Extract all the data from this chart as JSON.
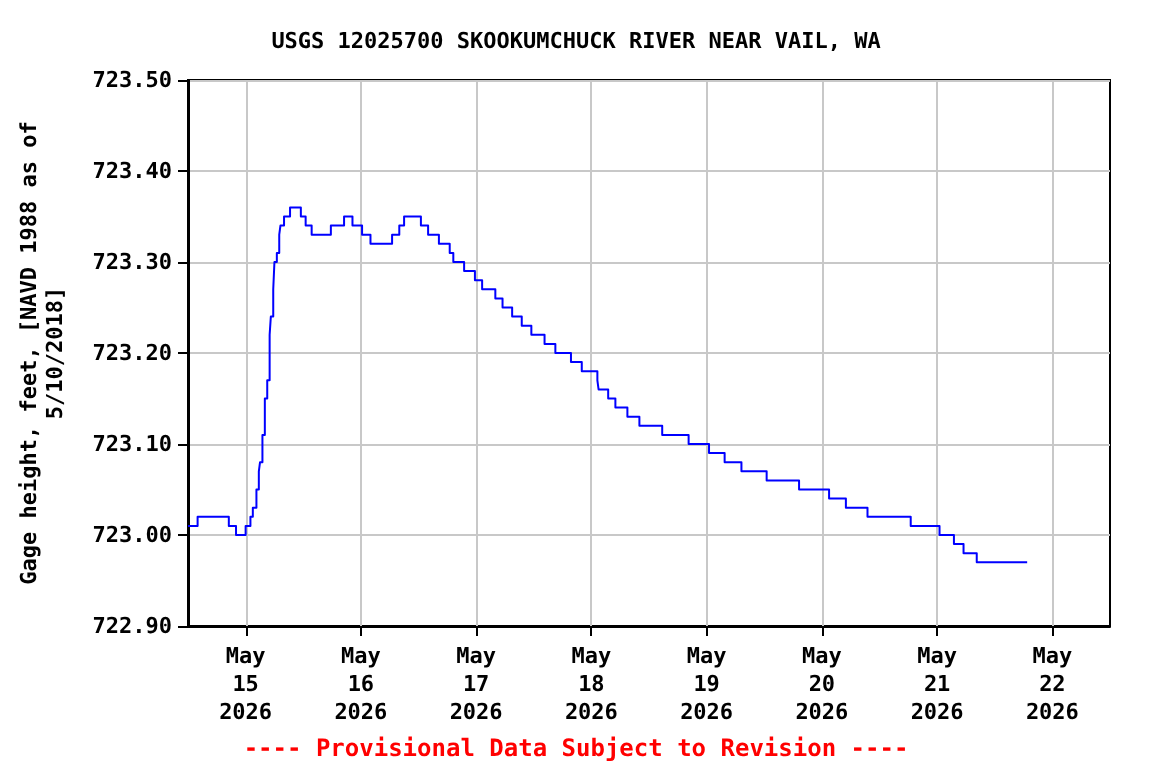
{
  "chart_data": {
    "type": "step",
    "title": "USGS 12025700 SKOOKUMCHUCK RIVER NEAR VAIL, WA",
    "ylabel": "Gage height, feet, [NAVD 1988 as of\n5/10/2018]",
    "annotations": [
      "---- Provisional Data Subject to Revision ----"
    ],
    "x": [
      "2026-05-14T12:00",
      "2026-05-14T14:00",
      "2026-05-14T20:30",
      "2026-05-14T22:00",
      "2026-05-15T00:00",
      "2026-05-15T01:00",
      "2026-05-15T01:30",
      "2026-05-15T02:15",
      "2026-05-15T02:45",
      "2026-05-15T03:00",
      "2026-05-15T03:30",
      "2026-05-15T04:00",
      "2026-05-15T04:30",
      "2026-05-15T05:00",
      "2026-05-15T05:15",
      "2026-05-15T05:45",
      "2026-05-15T06:00",
      "2026-05-15T06:30",
      "2026-05-15T07:00",
      "2026-05-15T07:15",
      "2026-05-15T08:00",
      "2026-05-15T09:15",
      "2026-05-15T11:30",
      "2026-05-15T12:30",
      "2026-05-15T13:45",
      "2026-05-15T17:45",
      "2026-05-15T20:30",
      "2026-05-15T22:15",
      "2026-05-16T00:15",
      "2026-05-16T02:00",
      "2026-05-16T06:30",
      "2026-05-16T08:00",
      "2026-05-16T09:00",
      "2026-05-16T12:30",
      "2026-05-16T14:00",
      "2026-05-16T16:15",
      "2026-05-16T18:30",
      "2026-05-16T19:15",
      "2026-05-16T21:30",
      "2026-05-16T23:45",
      "2026-05-17T01:15",
      "2026-05-17T04:00",
      "2026-05-17T05:30",
      "2026-05-17T07:30",
      "2026-05-17T09:30",
      "2026-05-17T11:30",
      "2026-05-17T14:15",
      "2026-05-17T16:30",
      "2026-05-17T19:45",
      "2026-05-17T22:00",
      "2026-05-18T01:15",
      "2026-05-18T01:30",
      "2026-05-18T03:30",
      "2026-05-18T05:00",
      "2026-05-18T07:30",
      "2026-05-18T10:00",
      "2026-05-18T14:45",
      "2026-05-18T20:15",
      "2026-05-19T00:30",
      "2026-05-19T03:45",
      "2026-05-19T07:15",
      "2026-05-19T12:30",
      "2026-05-19T19:15",
      "2026-05-20T01:30",
      "2026-05-20T05:00",
      "2026-05-20T09:30",
      "2026-05-20T18:30",
      "2026-05-21T00:30",
      "2026-05-21T03:30",
      "2026-05-21T05:30",
      "2026-05-21T08:15",
      "2026-05-21T18:45"
    ],
    "series": [
      {
        "color": "#0000ff",
        "values": [
          723.01,
          723.02,
          723.01,
          723.0,
          723.01,
          723.02,
          723.03,
          723.05,
          723.07,
          723.08,
          723.11,
          723.15,
          723.17,
          723.22,
          723.24,
          723.27,
          723.3,
          723.31,
          723.33,
          723.34,
          723.35,
          723.36,
          723.35,
          723.34,
          723.33,
          723.34,
          723.35,
          723.34,
          723.33,
          723.32,
          723.33,
          723.34,
          723.35,
          723.34,
          723.33,
          723.32,
          723.31,
          723.3,
          723.29,
          723.28,
          723.27,
          723.26,
          723.25,
          723.24,
          723.23,
          723.22,
          723.21,
          723.2,
          723.19,
          723.18,
          723.17,
          723.16,
          723.15,
          723.14,
          723.13,
          723.12,
          723.11,
          723.1,
          723.09,
          723.08,
          723.07,
          723.06,
          723.05,
          723.04,
          723.03,
          723.02,
          723.01,
          723.0,
          722.99,
          722.98,
          722.97,
          722.97
        ]
      }
    ],
    "xlim": [
      "2026-05-14T12:00",
      "2026-05-22T12:00"
    ],
    "xticks": [
      {
        "value": "2026-05-15",
        "label": "May\n15\n2026"
      },
      {
        "value": "2026-05-16",
        "label": "May\n16\n2026"
      },
      {
        "value": "2026-05-17",
        "label": "May\n17\n2026"
      },
      {
        "value": "2026-05-18",
        "label": "May\n18\n2026"
      },
      {
        "value": "2026-05-19",
        "label": "May\n19\n2026"
      },
      {
        "value": "2026-05-20",
        "label": "May\n20\n2026"
      },
      {
        "value": "2026-05-21",
        "label": "May\n21\n2026"
      },
      {
        "value": "2026-05-22",
        "label": "May\n22\n2026"
      }
    ],
    "ylim": [
      722.9,
      723.5
    ],
    "yticks": [
      {
        "value": 722.9,
        "label": "722.90"
      },
      {
        "value": 723.0,
        "label": "723.00"
      },
      {
        "value": 723.1,
        "label": "723.10"
      },
      {
        "value": 723.2,
        "label": "723.20"
      },
      {
        "value": 723.3,
        "label": "723.30"
      },
      {
        "value": 723.4,
        "label": "723.40"
      },
      {
        "value": 723.5,
        "label": "723.50"
      }
    ],
    "grid": true,
    "marker": "none",
    "line_style": "solid"
  }
}
